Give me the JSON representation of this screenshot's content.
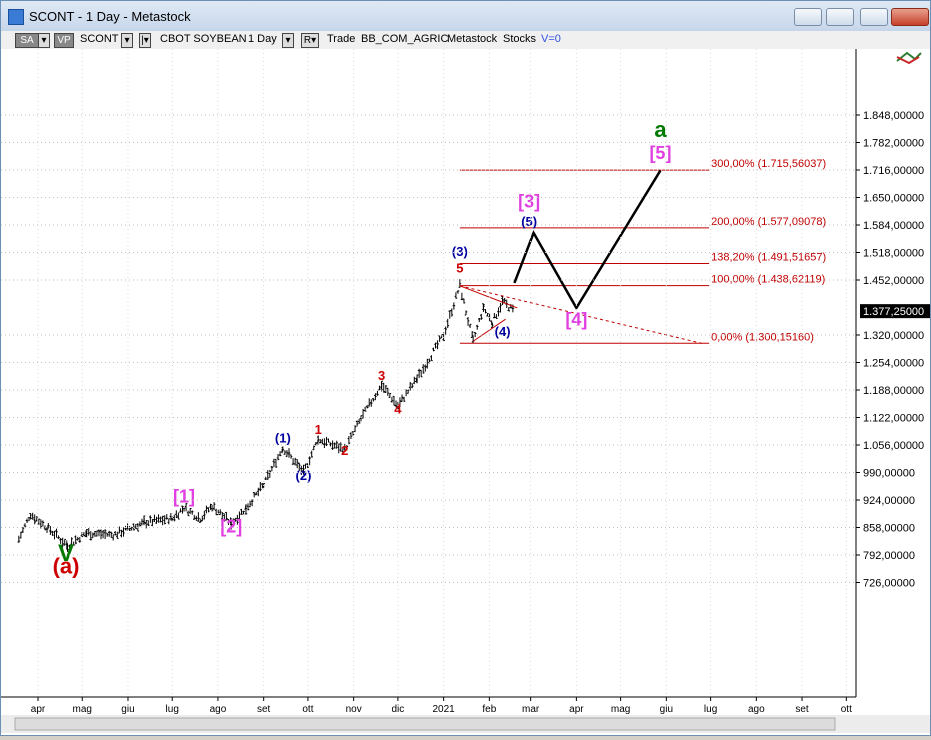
{
  "window": {
    "title": "SCONT - 1 Day - Metastock"
  },
  "toolbar": {
    "sa_label": "SA",
    "vp_label": "VP",
    "symbol": "SCONT",
    "security_name": "CBOT SOYBEAN",
    "period": "1 Day",
    "r_label": "R",
    "trade_label": "Trade",
    "sector": "BB_COM_AGRIC",
    "source": "Metastock",
    "type": "Stocks",
    "volume": "V=0"
  },
  "colors": {
    "price": "#000000",
    "fib": "#c00000",
    "magenta": "#e040e0",
    "blue": "#0000a0",
    "red": "#cc0000",
    "green": "#007a00"
  },
  "chart_data": {
    "type": "bar",
    "title": "",
    "xlabel": "",
    "ylabel": "",
    "x_tick_labels": [
      "apr",
      "mag",
      "giu",
      "lug",
      "ago",
      "set",
      "ott",
      "nov",
      "dic",
      "2021",
      "feb",
      "mar",
      "apr",
      "mag",
      "giu",
      "lug",
      "ago",
      "set",
      "ott"
    ],
    "y_tick_labels": [
      "1.848,00000",
      "1.782,00000",
      "1.716,00000",
      "1.650,00000",
      "1.584,00000",
      "1.518,00000",
      "1.452,00000",
      "1.320,00000",
      "1.254,00000",
      "1.188,00000",
      "1.122,00000",
      "1.056,00000",
      "990,00000",
      "924,00000",
      "858,00000",
      "792,00000",
      "726,00000"
    ],
    "ylim": [
      700,
      1880
    ],
    "last_price_label": "1.377,25000",
    "last_price": 1377.25,
    "price_path": [
      [
        "2020-03-19",
        830
      ],
      [
        "2020-03-27",
        890
      ],
      [
        "2020-04-08",
        856
      ],
      [
        "2020-04-21",
        815
      ],
      [
        "2020-05-04",
        845
      ],
      [
        "2020-05-22",
        840
      ],
      [
        "2020-06-12",
        870
      ],
      [
        "2020-07-01",
        880
      ],
      [
        "2020-07-09",
        905
      ],
      [
        "2020-07-20",
        880
      ],
      [
        "2020-07-28",
        910
      ],
      [
        "2020-08-10",
        868
      ],
      [
        "2020-08-20",
        905
      ],
      [
        "2020-09-01",
        960
      ],
      [
        "2020-09-14",
        1050
      ],
      [
        "2020-09-28",
        990
      ],
      [
        "2020-10-08",
        1070
      ],
      [
        "2020-10-26",
        1045
      ],
      [
        "2020-11-06",
        1120
      ],
      [
        "2020-11-20",
        1200
      ],
      [
        "2020-12-01",
        1150
      ],
      [
        "2020-12-14",
        1215
      ],
      [
        "2021-01-01",
        1320
      ],
      [
        "2021-01-12",
        1438
      ],
      [
        "2021-01-21",
        1305
      ],
      [
        "2021-01-28",
        1385
      ],
      [
        "2021-02-03",
        1350
      ],
      [
        "2021-02-10",
        1400
      ],
      [
        "2021-02-18",
        1377
      ]
    ],
    "fibonacci_levels": [
      {
        "ratio": "300,00%",
        "value": 1715.56037,
        "label": "300,00% (1.715,56037)"
      },
      {
        "ratio": "200,00%",
        "value": 1577.09078,
        "label": "200,00% (1.577,09078)"
      },
      {
        "ratio": "138,20%",
        "value": 1491.51657,
        "label": "138,20% (1.491,51657)"
      },
      {
        "ratio": "100,00%",
        "value": 1438.62119,
        "label": "100,00% (1.438,62119)"
      },
      {
        "ratio": "0,00%",
        "value": 1300.1516,
        "label": "0,00% (1.300,15160)"
      }
    ],
    "projection_path": [
      [
        "2021-02-18",
        1445
      ],
      [
        "2021-03-03",
        1565
      ],
      [
        "2021-04-01",
        1385
      ],
      [
        "2021-05-28",
        1715
      ]
    ],
    "triangle": {
      "upper": [
        [
          "2021-01-12",
          1438
        ],
        [
          "2021-02-20",
          1385
        ]
      ],
      "lower": [
        [
          "2021-01-21",
          1305
        ],
        [
          "2021-02-12",
          1358
        ]
      ],
      "dashed": [
        [
          "2021-01-12",
          1438
        ],
        [
          "2021-06-25",
          1300
        ]
      ]
    },
    "annotations": [
      {
        "text": "V",
        "date": "2020-04-20",
        "price": 778,
        "color": "green"
      },
      {
        "text": "(a)",
        "date": "2020-04-20",
        "price": 748,
        "color": "red"
      },
      {
        "text": "[1]",
        "date": "2020-07-09",
        "price": 918,
        "color": "magenta"
      },
      {
        "text": "[2]",
        "date": "2020-08-10",
        "price": 846,
        "color": "magenta"
      },
      {
        "text": "(1)",
        "date": "2020-09-14",
        "price": 1062,
        "color": "blue"
      },
      {
        "text": "(2)",
        "date": "2020-09-28",
        "price": 972,
        "color": "blue"
      },
      {
        "text": "1",
        "date": "2020-10-08",
        "price": 1082,
        "color": "red"
      },
      {
        "text": "2",
        "date": "2020-10-26",
        "price": 1032,
        "color": "red"
      },
      {
        "text": "3",
        "date": "2020-11-20",
        "price": 1212,
        "color": "red"
      },
      {
        "text": "4",
        "date": "2020-12-01",
        "price": 1132,
        "color": "red"
      },
      {
        "text": "(3)",
        "date": "2021-01-12",
        "price": 1510,
        "color": "blue"
      },
      {
        "text": "5",
        "date": "2021-01-12",
        "price": 1470,
        "color": "red"
      },
      {
        "text": "(4)",
        "date": "2021-02-10",
        "price": 1318,
        "color": "blue"
      },
      {
        "text": "[3]",
        "date": "2021-02-28",
        "price": 1626,
        "color": "magenta"
      },
      {
        "text": "(5)",
        "date": "2021-02-28",
        "price": 1582,
        "color": "blue"
      },
      {
        "text": "[4]",
        "date": "2021-04-01",
        "price": 1343,
        "color": "magenta"
      },
      {
        "text": "[5]",
        "date": "2021-05-28",
        "price": 1742,
        "color": "magenta"
      },
      {
        "text": "a",
        "date": "2021-05-28",
        "price": 1795,
        "color": "green"
      }
    ]
  }
}
